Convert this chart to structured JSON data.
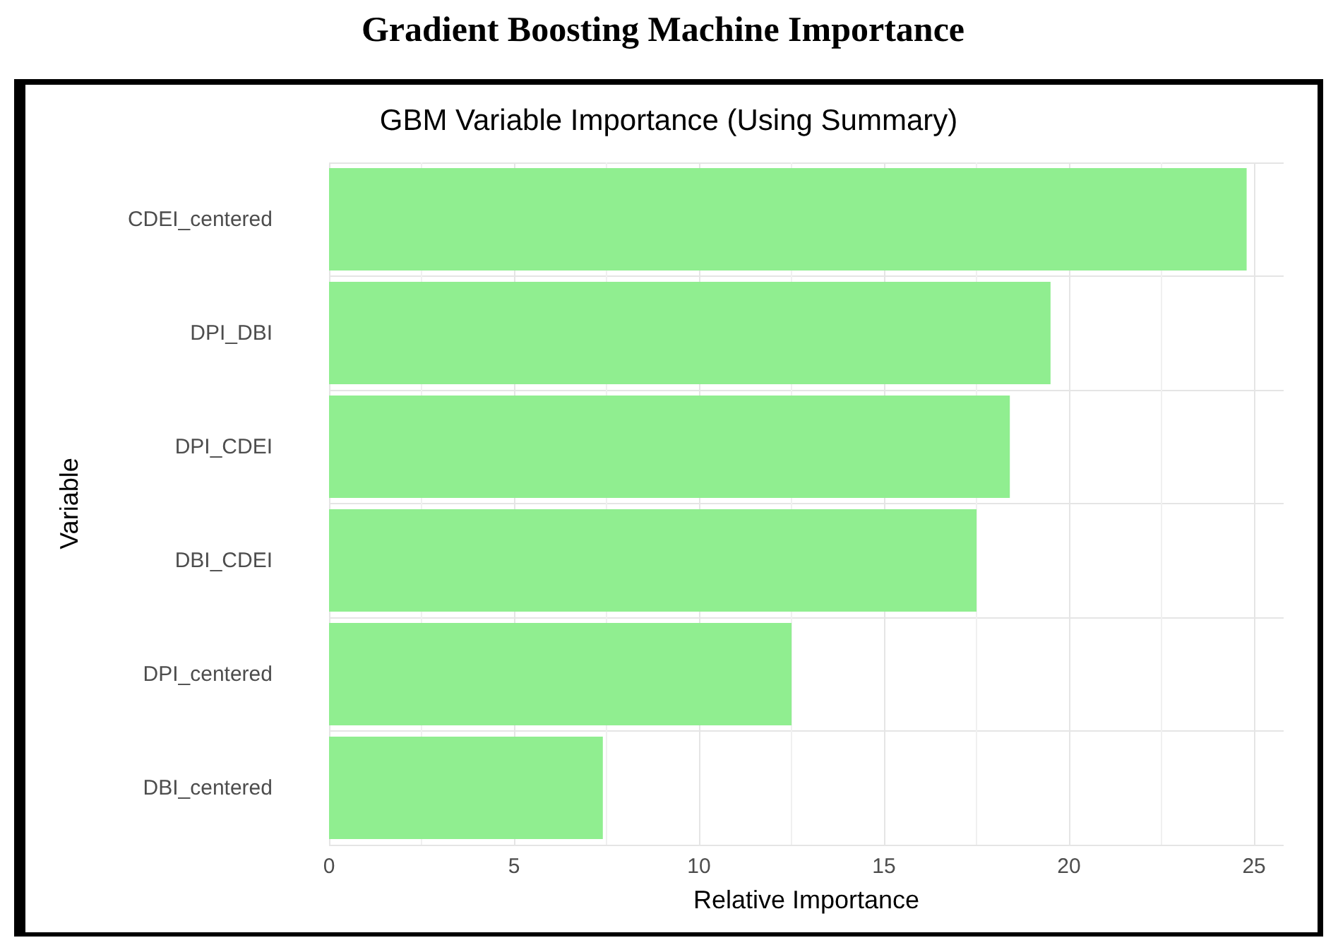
{
  "chart_data": {
    "type": "bar",
    "orientation": "horizontal",
    "title": "Gradient Boosting Machine Importance",
    "subtitle": "GBM Variable Importance (Using Summary)",
    "xlabel": "Relative Importance",
    "ylabel": "Variable",
    "categories": [
      "CDEI_centered",
      "DPI_DBI",
      "DPI_CDEI",
      "DBI_CDEI",
      "DPI_centered",
      "DBI_centered"
    ],
    "values": [
      24.8,
      19.5,
      18.4,
      17.5,
      12.5,
      7.4
    ],
    "color": "#90ee90",
    "xlim": [
      0,
      25.8
    ],
    "xticks": [
      0,
      5,
      10,
      15,
      20,
      25
    ],
    "grid": true
  }
}
